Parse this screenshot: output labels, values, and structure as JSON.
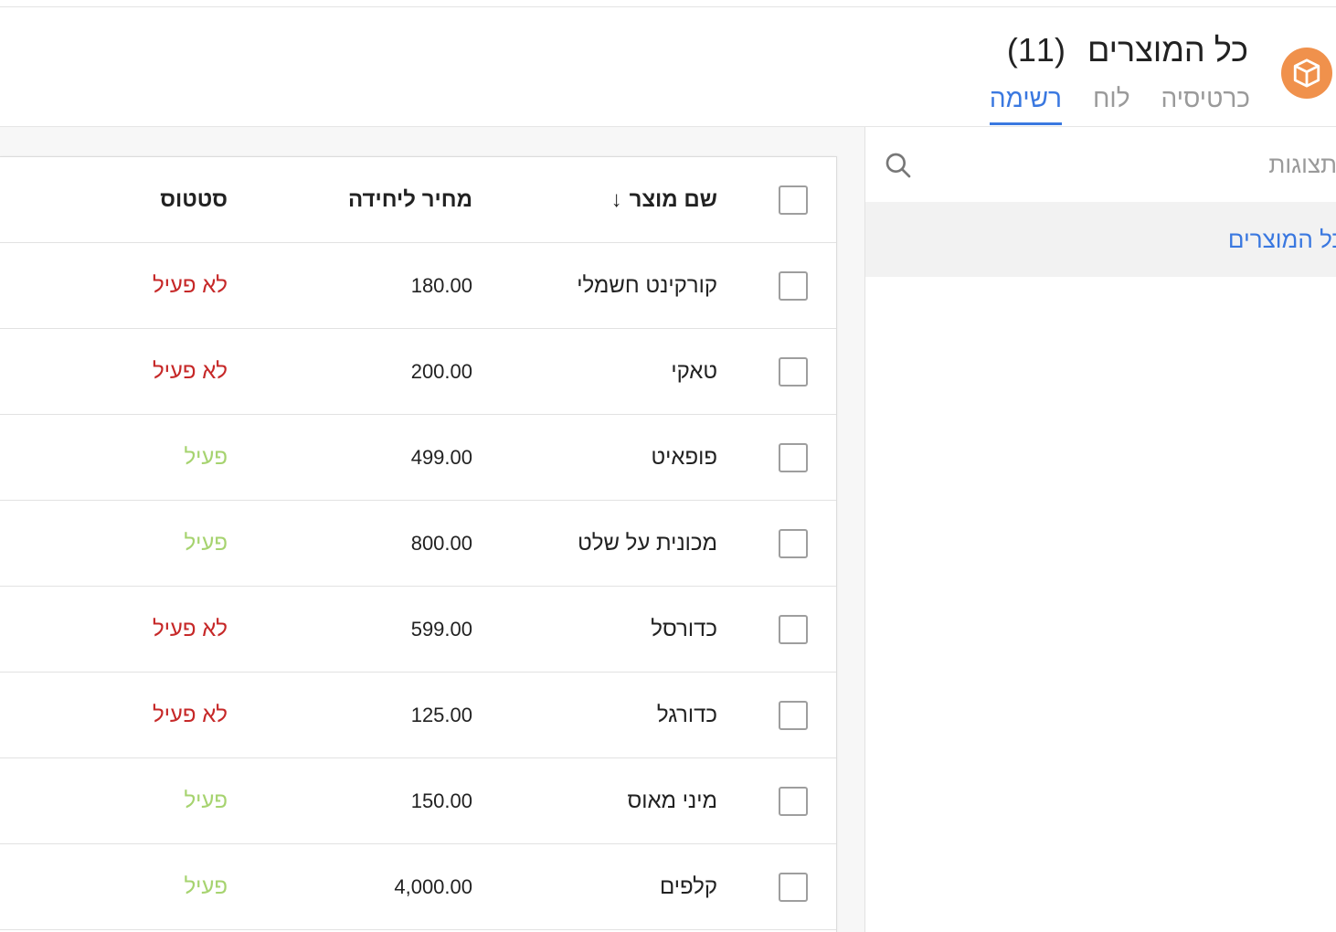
{
  "header": {
    "title": "כל המוצרים",
    "count": "(11)",
    "icon": "box-icon",
    "tabs": [
      {
        "label": "רשימה",
        "active": true
      },
      {
        "label": "לוח",
        "active": false
      },
      {
        "label": "כרטיסיה",
        "active": false
      }
    ]
  },
  "table": {
    "columns": {
      "name": "שם מוצר",
      "price": "מחיר ליחידה",
      "status": "סטטוס"
    },
    "sort_indicator": "↓",
    "rows": [
      {
        "name": "קורקינט חשמלי",
        "price": "180.00",
        "status": "לא פעיל",
        "active": false
      },
      {
        "name": "טאקי",
        "price": "200.00",
        "status": "לא פעיל",
        "active": false
      },
      {
        "name": "פופאיט",
        "price": "499.00",
        "status": "פעיל",
        "active": true
      },
      {
        "name": "מכונית על שלט",
        "price": "800.00",
        "status": "פעיל",
        "active": true
      },
      {
        "name": "כדורסל",
        "price": "599.00",
        "status": "לא פעיל",
        "active": false
      },
      {
        "name": "כדורגל",
        "price": "125.00",
        "status": "לא פעיל",
        "active": false
      },
      {
        "name": "מיני מאוס",
        "price": "150.00",
        "status": "פעיל",
        "active": true
      },
      {
        "name": "קלפים",
        "price": "4,000.00",
        "status": "פעיל",
        "active": true
      }
    ]
  },
  "sidebar": {
    "search_placeholder": "תצוגות",
    "views": [
      {
        "label": "כל המוצרים",
        "selected": true
      }
    ]
  },
  "colors": {
    "accent": "#3a78e0",
    "app_icon_bg": "#f0914c",
    "status_inactive": "#c62828",
    "status_active": "#a6d36f"
  }
}
